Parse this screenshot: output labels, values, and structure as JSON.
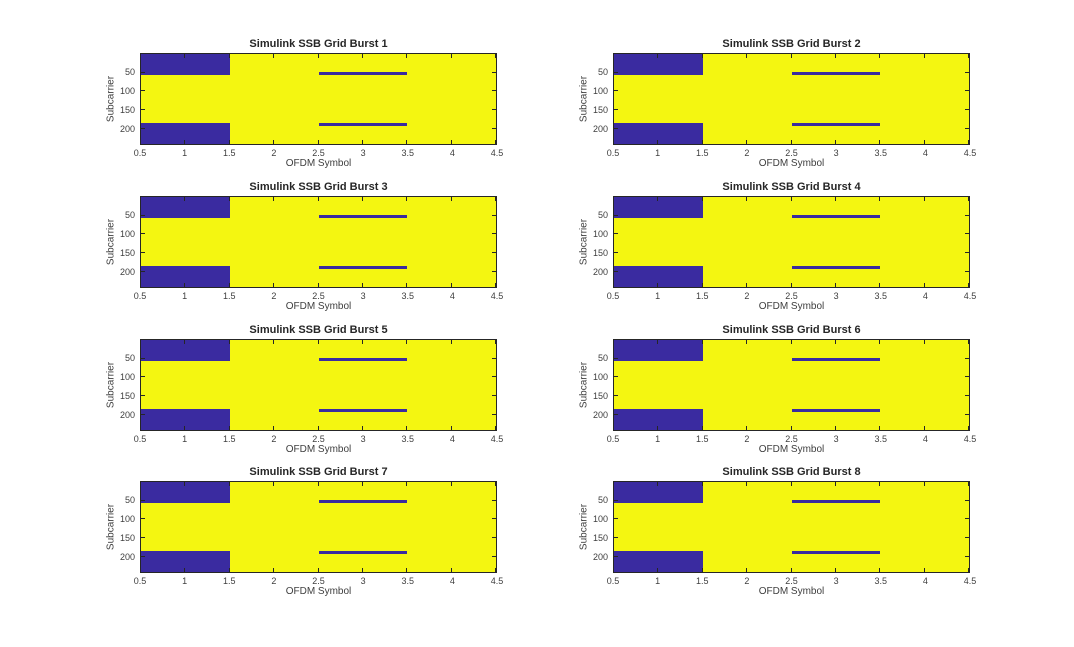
{
  "figure": {
    "background_color": "#FFFFFF",
    "grid_layout": "4 rows x 2 columns of identical subplots"
  },
  "chart_data": {
    "type": "heatmap",
    "subplot_titles": [
      "Simulink SSB Grid Burst 1",
      "Simulink SSB Grid Burst 2",
      "Simulink SSB Grid Burst 3",
      "Simulink SSB Grid Burst 4",
      "Simulink SSB Grid Burst 5",
      "Simulink SSB Grid Burst 6",
      "Simulink SSB Grid Burst 7",
      "Simulink SSB Grid Burst 8"
    ],
    "xlabel": "OFDM Symbol",
    "ylabel": "Subcarrier",
    "xlim": [
      0.5,
      4.5
    ],
    "ylim": [
      0.5,
      240.5
    ],
    "y_axis_direction": "reversed (subcarrier 1 at top)",
    "xticks": [
      0.5,
      1,
      1.5,
      2,
      2.5,
      3,
      3.5,
      4,
      4.5
    ],
    "yticks": [
      50,
      100,
      150,
      200
    ],
    "n_ofdm_symbols": 4,
    "n_subcarriers": 240,
    "colors": {
      "occupied_yellow": "#F4F611",
      "empty_blue": "#3A2BA0",
      "axis": "#262626",
      "tick_text": "#3E3E3E",
      "title_text": "#262626"
    },
    "empty_regions": [
      {
        "x_range": [
          0.5,
          1.5
        ],
        "subcarrier_range": [
          1,
          56
        ]
      },
      {
        "x_range": [
          0.5,
          1.5
        ],
        "subcarrier_range": [
          184,
          240
        ]
      },
      {
        "x_range": [
          2.5,
          3.5
        ],
        "subcarrier_range": [
          49,
          56
        ]
      },
      {
        "x_range": [
          2.5,
          3.5
        ],
        "subcarrier_range": [
          184,
          192
        ]
      }
    ],
    "legend_position": "none",
    "grid_lines": "off",
    "note": "All eight subplots display the identical SSB resource-grid pattern; yellow = occupied resource elements, blue = empty resource elements."
  }
}
